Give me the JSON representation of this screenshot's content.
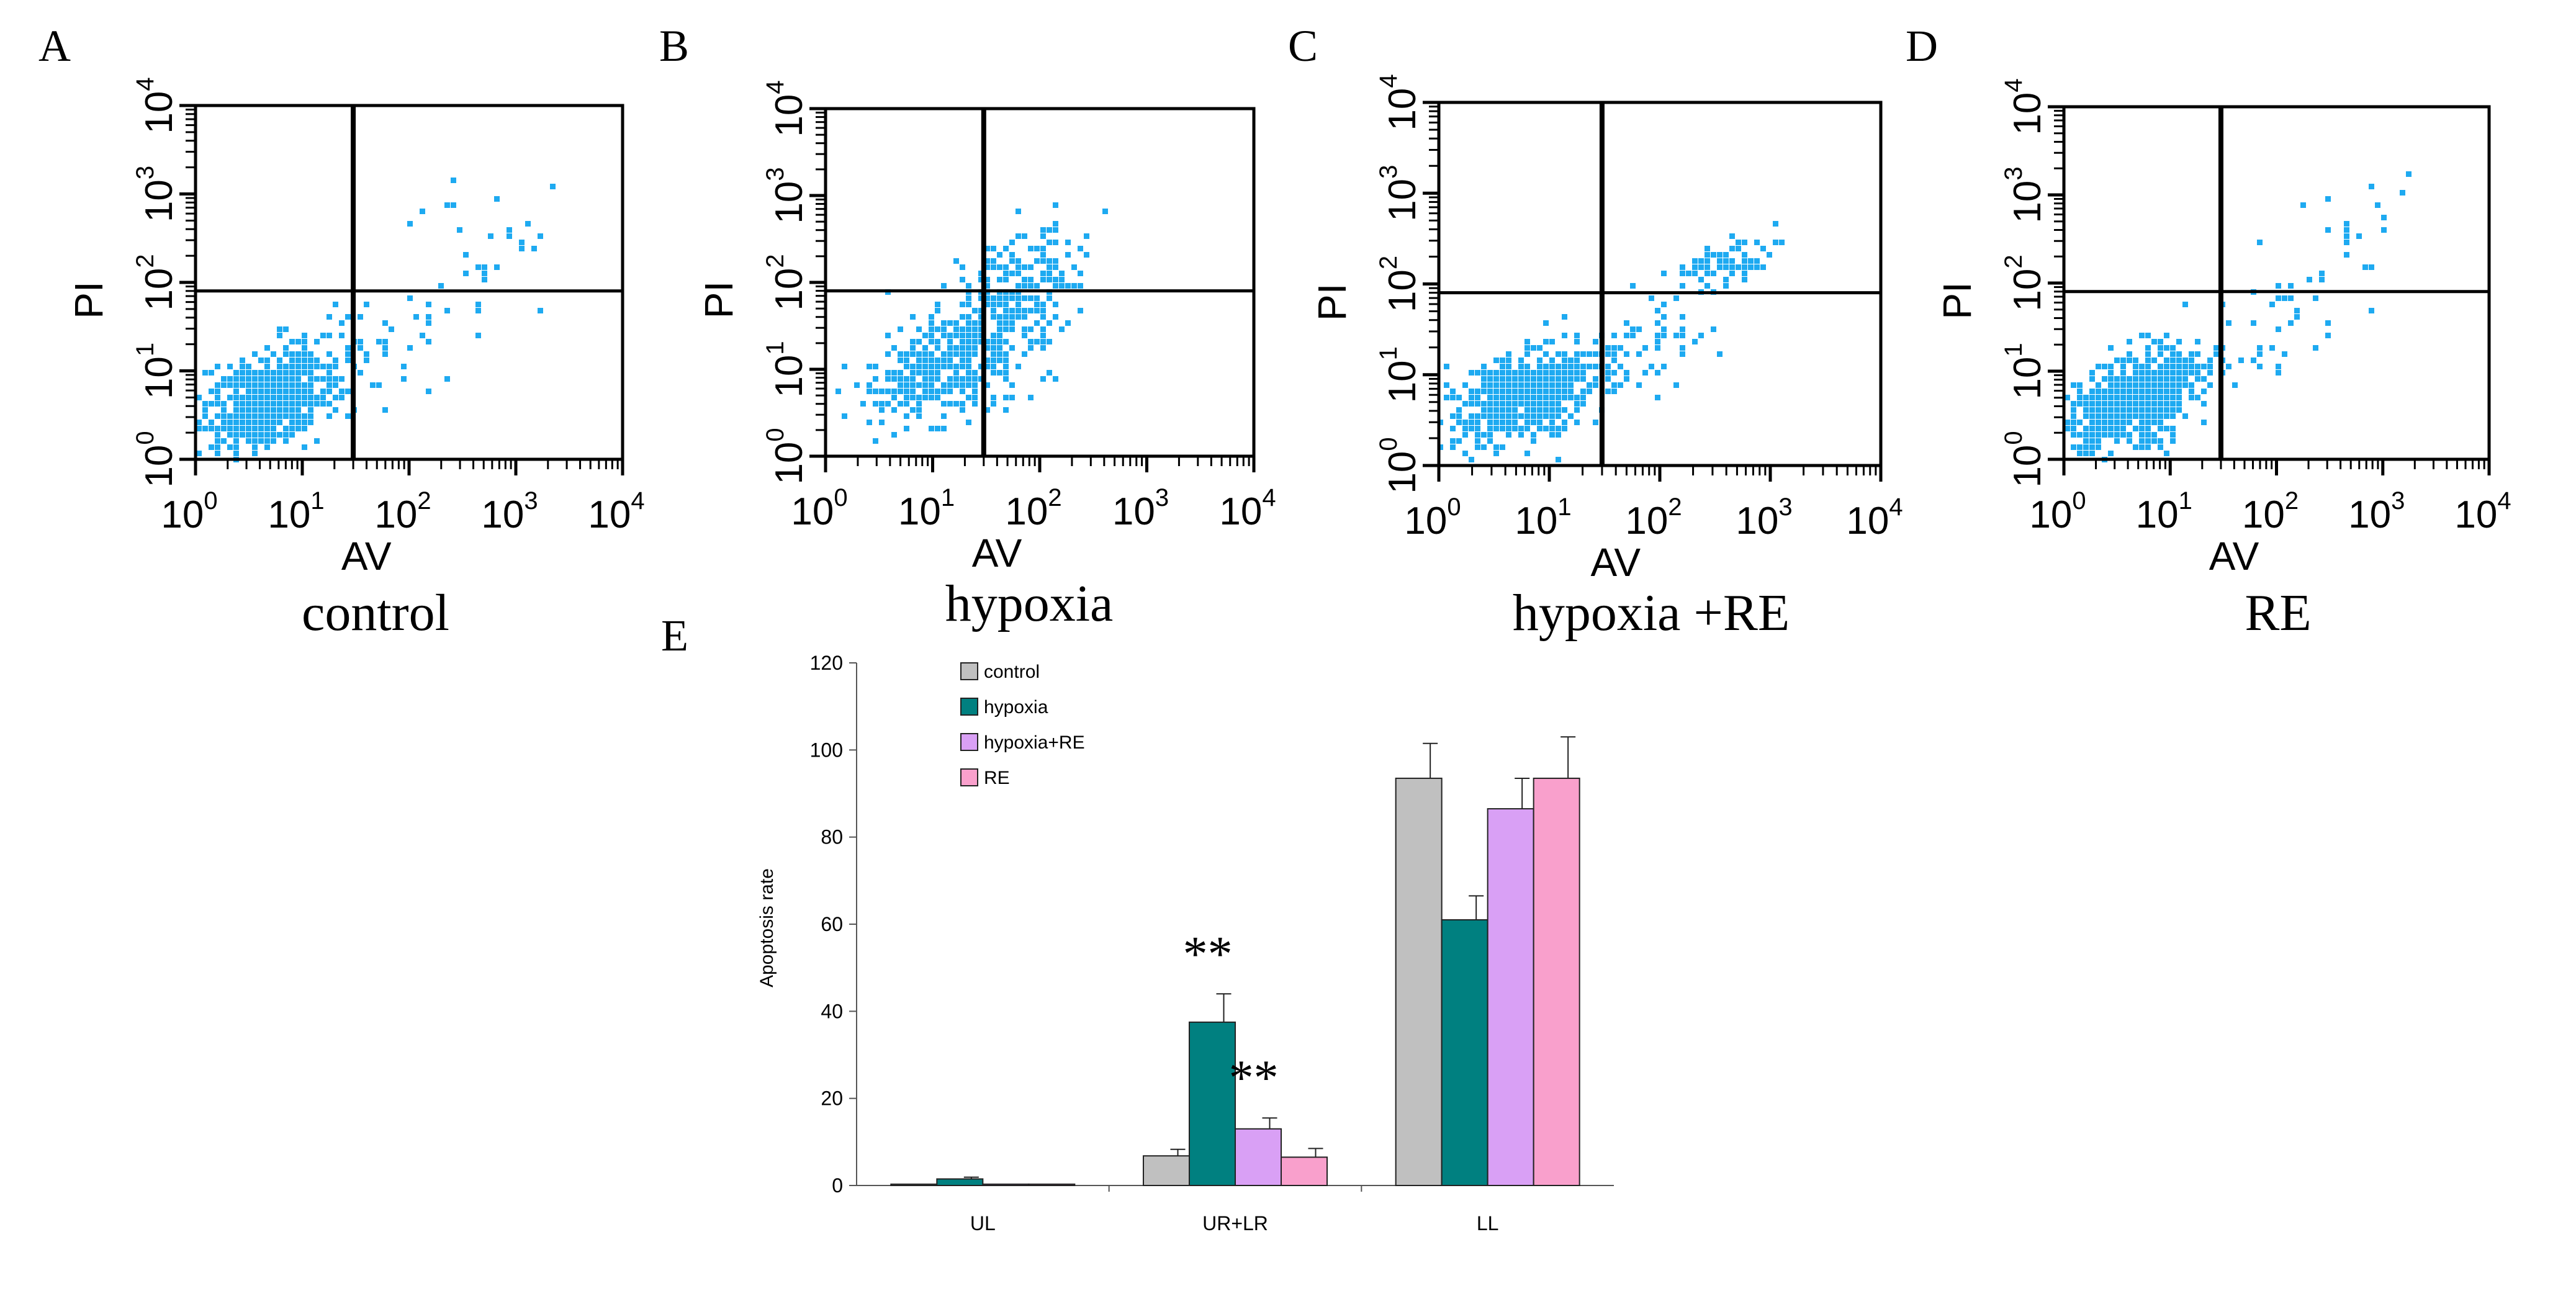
{
  "chart_data": [
    {
      "type": "scatter",
      "panel_letter": "A",
      "condition": "control",
      "xlabel": "AV",
      "ylabel": "PI",
      "xlim": [
        1,
        10000
      ],
      "ylim": [
        1,
        10000
      ],
      "x_scale": "log",
      "y_scale": "log",
      "x_tick_labels": [
        {
          "base": "10",
          "exp": "0"
        },
        {
          "base": "10",
          "exp": "1"
        },
        {
          "base": "10",
          "exp": "2"
        },
        {
          "base": "10",
          "exp": "3"
        },
        {
          "base": "10",
          "exp": "4"
        }
      ],
      "y_tick_labels": [
        {
          "base": "10",
          "exp": "0"
        },
        {
          "base": "10",
          "exp": "1"
        },
        {
          "base": "10",
          "exp": "2"
        },
        {
          "base": "10",
          "exp": "3"
        },
        {
          "base": "10",
          "exp": "4"
        }
      ],
      "quadrant_gate": {
        "x": 30,
        "y": 80
      },
      "point_color": "#1eaaf1",
      "populations": [
        {
          "x": 5,
          "y": 5,
          "n": 620,
          "spread_x": 0.32,
          "spread_y": 0.26
        },
        {
          "x": 60,
          "y": 25,
          "n": 40,
          "spread_x": 0.35,
          "spread_y": 0.35
        },
        {
          "x": 500,
          "y": 250,
          "n": 25,
          "spread_x": 0.4,
          "spread_y": 0.4
        }
      ]
    },
    {
      "type": "scatter",
      "panel_letter": "B",
      "condition": "hypoxia",
      "xlabel": "AV",
      "ylabel": "PI",
      "xlim": [
        1,
        10000
      ],
      "ylim": [
        1,
        10000
      ],
      "x_scale": "log",
      "y_scale": "log",
      "x_tick_labels": [
        {
          "base": "10",
          "exp": "0"
        },
        {
          "base": "10",
          "exp": "1"
        },
        {
          "base": "10",
          "exp": "2"
        },
        {
          "base": "10",
          "exp": "3"
        },
        {
          "base": "10",
          "exp": "4"
        }
      ],
      "y_tick_labels": [
        {
          "base": "10",
          "exp": "0"
        },
        {
          "base": "10",
          "exp": "1"
        },
        {
          "base": "10",
          "exp": "2"
        },
        {
          "base": "10",
          "exp": "3"
        },
        {
          "base": "10",
          "exp": "4"
        }
      ],
      "quadrant_gate": {
        "x": 30,
        "y": 80
      },
      "point_color": "#1eaaf1",
      "populations": [
        {
          "x": 15,
          "y": 12,
          "n": 420,
          "spread_x": 0.38,
          "spread_y": 0.3
        },
        {
          "x": 70,
          "y": 100,
          "n": 180,
          "spread_x": 0.28,
          "spread_y": 0.32
        }
      ]
    },
    {
      "type": "scatter",
      "panel_letter": "C",
      "condition": "hypoxia +RE",
      "xlabel": "AV",
      "ylabel": "PI",
      "xlim": [
        1,
        10000
      ],
      "ylim": [
        1,
        10000
      ],
      "x_scale": "log",
      "y_scale": "log",
      "x_tick_labels": [
        {
          "base": "10",
          "exp": "0"
        },
        {
          "base": "10",
          "exp": "1"
        },
        {
          "base": "10",
          "exp": "2"
        },
        {
          "base": "10",
          "exp": "3"
        },
        {
          "base": "10",
          "exp": "4"
        }
      ],
      "y_tick_labels": [
        {
          "base": "10",
          "exp": "0"
        },
        {
          "base": "10",
          "exp": "1"
        },
        {
          "base": "10",
          "exp": "2"
        },
        {
          "base": "10",
          "exp": "3"
        },
        {
          "base": "10",
          "exp": "4"
        }
      ],
      "quadrant_gate": {
        "x": 30,
        "y": 80
      },
      "point_color": "#1eaaf1",
      "populations": [
        {
          "x": 6,
          "y": 6,
          "n": 560,
          "spread_x": 0.32,
          "spread_y": 0.24
        },
        {
          "x": 70,
          "y": 20,
          "n": 60,
          "spread_x": 0.35,
          "spread_y": 0.3
        },
        {
          "x": 400,
          "y": 180,
          "n": 80,
          "spread_x": 0.25,
          "spread_y": 0.12
        }
      ]
    },
    {
      "type": "scatter",
      "panel_letter": "D",
      "condition": "RE",
      "xlabel": "AV",
      "ylabel": "PI",
      "xlim": [
        1,
        10000
      ],
      "ylim": [
        1,
        10000
      ],
      "x_scale": "log",
      "y_scale": "log",
      "x_tick_labels": [
        {
          "base": "10",
          "exp": "0"
        },
        {
          "base": "10",
          "exp": "1"
        },
        {
          "base": "10",
          "exp": "2"
        },
        {
          "base": "10",
          "exp": "3"
        },
        {
          "base": "10",
          "exp": "4"
        }
      ],
      "y_tick_labels": [
        {
          "base": "10",
          "exp": "0"
        },
        {
          "base": "10",
          "exp": "1"
        },
        {
          "base": "10",
          "exp": "2"
        },
        {
          "base": "10",
          "exp": "3"
        },
        {
          "base": "10",
          "exp": "4"
        }
      ],
      "quadrant_gate": {
        "x": 30,
        "y": 80
      },
      "point_color": "#1eaaf1",
      "populations": [
        {
          "x": 5,
          "y": 5,
          "n": 620,
          "spread_x": 0.32,
          "spread_y": 0.26
        },
        {
          "x": 60,
          "y": 25,
          "n": 35,
          "spread_x": 0.35,
          "spread_y": 0.35
        },
        {
          "x": 500,
          "y": 250,
          "n": 22,
          "spread_x": 0.4,
          "spread_y": 0.4
        }
      ]
    },
    {
      "type": "bar",
      "panel_letter": "E",
      "categories": [
        "UL",
        "UR+LR",
        "LL"
      ],
      "ylabel": "Apoptosis rate",
      "ylim": [
        0,
        120
      ],
      "y_ticks": [
        0,
        20,
        40,
        60,
        80,
        100,
        120
      ],
      "legend_position": "top-left",
      "series": [
        {
          "name": "control",
          "color": "#c0c0c0",
          "values": [
            0.3,
            6.8,
            93.5
          ],
          "errors": [
            0,
            1.5,
            8
          ]
        },
        {
          "name": "hypoxia",
          "color": "#008080",
          "values": [
            1.5,
            37.5,
            61
          ],
          "errors": [
            0.4,
            6.5,
            5.5
          ]
        },
        {
          "name": "hypoxia+RE",
          "color": "#d9a0f5",
          "values": [
            0.3,
            13,
            86.5
          ],
          "errors": [
            0,
            2.5,
            7
          ]
        },
        {
          "name": "RE",
          "color": "#f9a0cc",
          "values": [
            0.3,
            6.5,
            93.5
          ],
          "errors": [
            0,
            2,
            9.5
          ]
        }
      ],
      "annotations": [
        {
          "text": "**",
          "category": "UR+LR",
          "series": "hypoxia"
        },
        {
          "text": "**",
          "category": "UR+LR",
          "series": "hypoxia+RE"
        }
      ]
    }
  ]
}
